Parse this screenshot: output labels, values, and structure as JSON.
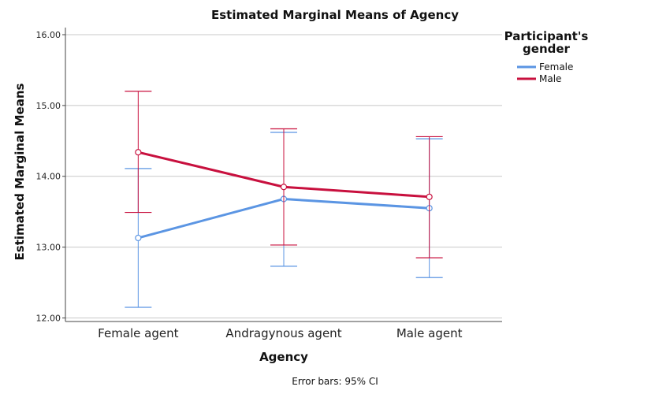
{
  "chart_data": {
    "type": "line",
    "title": "Estimated Marginal Means of Agency",
    "xlabel": "Agency",
    "ylabel": "Estimated Marginal Means",
    "categories": [
      "Female agent",
      "Andragynous agent",
      "Male agent"
    ],
    "ylim": [
      11.95,
      16.1
    ],
    "yticks": [
      "12.00",
      "13.00",
      "14.00",
      "15.00",
      "16.00"
    ],
    "grid": true,
    "legend": {
      "title_line1": "Participant's",
      "title_line2": "gender",
      "placement": "right"
    },
    "series": [
      {
        "name": "Female",
        "color": "#5b95e3",
        "values": [
          13.13,
          13.68,
          13.55
        ],
        "ci_low": [
          12.15,
          12.73,
          12.57
        ],
        "ci_high": [
          14.11,
          14.62,
          14.53
        ]
      },
      {
        "name": "Male",
        "color": "#c8103e",
        "values": [
          14.34,
          13.85,
          13.71
        ],
        "ci_low": [
          13.49,
          13.03,
          12.85
        ],
        "ci_high": [
          15.2,
          14.67,
          14.56
        ]
      }
    ],
    "footnote": "Error bars: 95% CI"
  }
}
